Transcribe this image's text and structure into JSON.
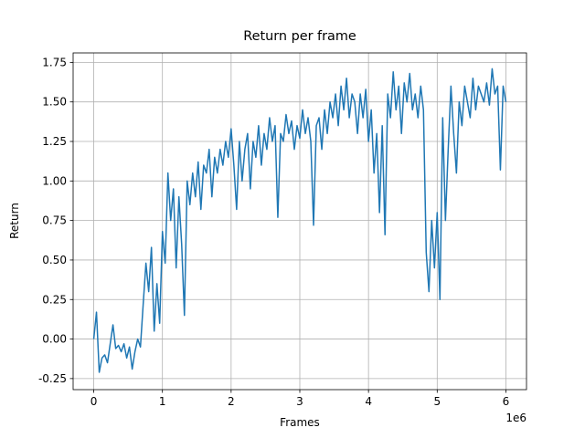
{
  "chart_data": {
    "type": "line",
    "title": "Return per frame",
    "xlabel": "Frames",
    "ylabel": "Return",
    "x_offset": "1e6",
    "x": [
      0,
      0.04,
      0.08,
      0.12,
      0.16,
      0.2,
      0.24,
      0.28,
      0.32,
      0.36,
      0.4,
      0.44,
      0.48,
      0.52,
      0.56,
      0.6,
      0.64,
      0.68,
      0.72,
      0.76,
      0.8,
      0.84,
      0.88,
      0.92,
      0.96,
      1.0,
      1.04,
      1.08,
      1.12,
      1.16,
      1.2,
      1.24,
      1.28,
      1.32,
      1.36,
      1.4,
      1.44,
      1.48,
      1.52,
      1.56,
      1.6,
      1.64,
      1.68,
      1.72,
      1.76,
      1.8,
      1.84,
      1.88,
      1.92,
      1.96,
      2.0,
      2.04,
      2.08,
      2.12,
      2.16,
      2.2,
      2.24,
      2.28,
      2.32,
      2.36,
      2.4,
      2.44,
      2.48,
      2.52,
      2.56,
      2.6,
      2.64,
      2.68,
      2.72,
      2.76,
      2.8,
      2.84,
      2.88,
      2.92,
      2.96,
      3.0,
      3.04,
      3.08,
      3.12,
      3.16,
      3.2,
      3.24,
      3.28,
      3.32,
      3.36,
      3.4,
      3.44,
      3.48,
      3.52,
      3.56,
      3.6,
      3.64,
      3.68,
      3.72,
      3.76,
      3.8,
      3.84,
      3.88,
      3.92,
      3.96,
      4.0,
      4.04,
      4.08,
      4.12,
      4.16,
      4.2,
      4.24,
      4.28,
      4.32,
      4.36,
      4.4,
      4.44,
      4.48,
      4.52,
      4.56,
      4.6,
      4.64,
      4.68,
      4.72,
      4.76,
      4.8,
      4.84,
      4.88,
      4.92,
      4.96,
      5.0,
      5.04,
      5.08,
      5.12,
      5.16,
      5.2,
      5.24,
      5.28,
      5.32,
      5.36,
      5.4,
      5.44,
      5.48,
      5.52,
      5.56,
      5.6,
      5.64,
      5.68,
      5.72,
      5.76,
      5.8,
      5.84,
      5.88,
      5.92,
      5.96,
      6.0
    ],
    "series": [
      {
        "color": "#1f77b4",
        "values": [
          0.0,
          0.17,
          -0.21,
          -0.12,
          -0.1,
          -0.15,
          -0.03,
          0.09,
          -0.06,
          -0.04,
          -0.08,
          -0.03,
          -0.12,
          -0.05,
          -0.19,
          -0.08,
          0.0,
          -0.05,
          0.22,
          0.48,
          0.3,
          0.58,
          0.05,
          0.35,
          0.1,
          0.68,
          0.48,
          1.05,
          0.75,
          0.95,
          0.45,
          0.9,
          0.6,
          0.15,
          1.0,
          0.85,
          1.05,
          0.9,
          1.12,
          0.82,
          1.1,
          1.05,
          1.2,
          0.9,
          1.15,
          1.05,
          1.2,
          1.1,
          1.25,
          1.15,
          1.33,
          1.1,
          0.82,
          1.25,
          1.0,
          1.2,
          1.3,
          0.95,
          1.25,
          1.15,
          1.35,
          1.1,
          1.3,
          1.2,
          1.4,
          1.25,
          1.35,
          0.77,
          1.3,
          1.25,
          1.42,
          1.3,
          1.38,
          1.2,
          1.35,
          1.27,
          1.45,
          1.3,
          1.4,
          1.25,
          0.72,
          1.35,
          1.4,
          1.2,
          1.45,
          1.3,
          1.5,
          1.4,
          1.55,
          1.35,
          1.6,
          1.45,
          1.65,
          1.4,
          1.55,
          1.5,
          1.3,
          1.55,
          1.4,
          1.58,
          1.25,
          1.45,
          1.05,
          1.3,
          0.8,
          1.35,
          0.66,
          1.55,
          1.4,
          1.69,
          1.45,
          1.6,
          1.3,
          1.62,
          1.5,
          1.68,
          1.45,
          1.55,
          1.4,
          1.6,
          1.45,
          0.55,
          0.3,
          0.75,
          0.45,
          0.8,
          0.25,
          1.4,
          0.75,
          1.2,
          1.6,
          1.3,
          1.05,
          1.5,
          1.35,
          1.6,
          1.5,
          1.4,
          1.65,
          1.45,
          1.6,
          1.55,
          1.5,
          1.62,
          1.48,
          1.71,
          1.55,
          1.6,
          1.07,
          1.6,
          1.5
        ]
      }
    ],
    "xlim": [
      -0.3,
      6.3
    ],
    "xticks": [
      0,
      1,
      2,
      3,
      4,
      5,
      6
    ],
    "ylim": [
      -0.32,
      1.81
    ],
    "yticks": [
      -0.25,
      {
        "value": 0,
        "label": "0.00"
      },
      0.25,
      {
        "value": 0.5,
        "label": "0.50"
      },
      0.75,
      {
        "value": 1,
        "label": "1.00"
      },
      1.25,
      {
        "value": 1.5,
        "label": "1.50"
      },
      1.75
    ],
    "grid": true
  }
}
